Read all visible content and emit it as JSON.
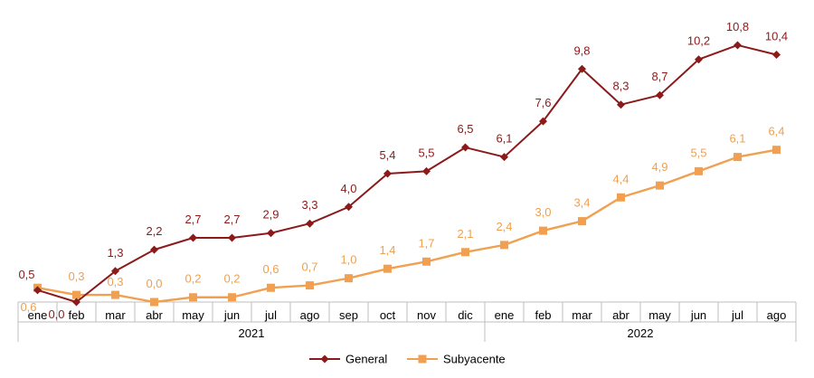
{
  "chart_data": {
    "type": "line",
    "categories": [
      "ene",
      "feb",
      "mar",
      "abr",
      "may",
      "jun",
      "jul",
      "ago",
      "sep",
      "oct",
      "nov",
      "dic",
      "ene",
      "feb",
      "mar",
      "abr",
      "may",
      "jun",
      "jul",
      "ago"
    ],
    "years": [
      {
        "label": "2021",
        "from": 0,
        "to": 11
      },
      {
        "label": "2022",
        "from": 12,
        "to": 19
      }
    ],
    "series": [
      {
        "name": "General",
        "color": "#8B1A1A",
        "marker": "diamond",
        "values": [
          0.5,
          0.0,
          1.3,
          2.2,
          2.7,
          2.7,
          2.9,
          3.3,
          4.0,
          5.4,
          5.5,
          6.5,
          6.1,
          7.6,
          9.8,
          8.3,
          8.7,
          10.2,
          10.8,
          10.4
        ],
        "labels": [
          "0,5",
          "0,0",
          "1,3",
          "2,2",
          "2,7",
          "2,7",
          "2,9",
          "3,3",
          "4,0",
          "5,4",
          "5,5",
          "6,5",
          "6,1",
          "7,6",
          "9,8",
          "8,3",
          "8,7",
          "10,2",
          "10,8",
          "10,4"
        ]
      },
      {
        "name": "Subyacente",
        "color": "#F0A050",
        "marker": "square",
        "values": [
          0.6,
          0.3,
          0.3,
          0.0,
          0.2,
          0.2,
          0.6,
          0.7,
          1.0,
          1.4,
          1.7,
          2.1,
          2.4,
          3.0,
          3.4,
          4.4,
          4.9,
          5.5,
          6.1,
          6.4
        ],
        "labels": [
          "0,6",
          "0,3",
          "0,3",
          "0,0",
          "0,2",
          "0,2",
          "0,6",
          "0,7",
          "1,0",
          "1,4",
          "1,7",
          "2,1",
          "2,4",
          "3,0",
          "3,4",
          "4,4",
          "4,9",
          "5,5",
          "6,1",
          "6,4"
        ]
      }
    ],
    "ylim": [
      0,
      11.5
    ],
    "grid": false,
    "legend": "bottom"
  }
}
